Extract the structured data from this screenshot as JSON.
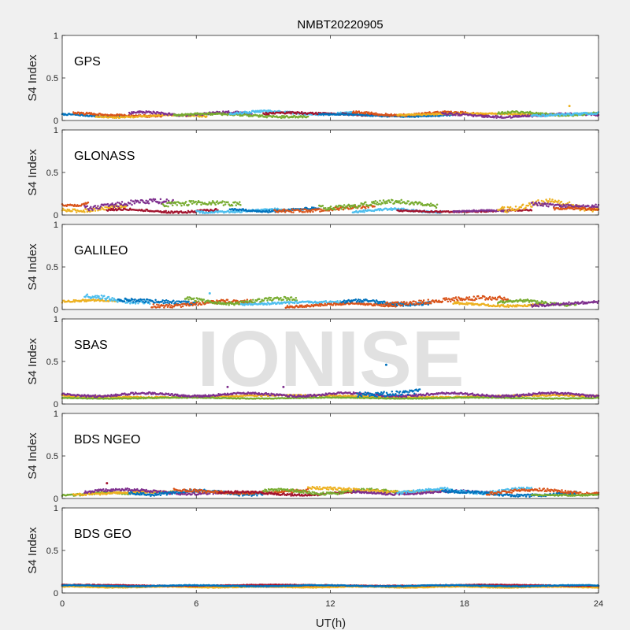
{
  "figure": {
    "title": "NMBT20220905",
    "watermark": "IONISE",
    "background": "#f0f0f0",
    "axes_background": "#ffffff"
  },
  "chart_data": {
    "type": "scatter",
    "title": "NMBT20220905",
    "xlabel": "UT(h)",
    "ylabel": "S4 Index",
    "xlim": [
      0,
      24
    ],
    "ylim": [
      0,
      1
    ],
    "xticks": [
      "0",
      "6",
      "12",
      "18",
      "24"
    ],
    "yticks": [
      "0",
      "0.5",
      "1"
    ],
    "grid": false,
    "series_colors": [
      "#0072BD",
      "#D95319",
      "#EDB120",
      "#7E2F8E",
      "#77AC30",
      "#4DBEEE",
      "#A2142F"
    ],
    "panels": [
      {
        "label": "GPS",
        "tracks": [
          {
            "start": 0.0,
            "end": 2.8,
            "base": 0.06,
            "amp": 0.02,
            "color": 0
          },
          {
            "start": 0.5,
            "end": 4.5,
            "base": 0.07,
            "amp": 0.03,
            "color": 1
          },
          {
            "start": 1.5,
            "end": 6.5,
            "base": 0.05,
            "amp": 0.02,
            "color": 2
          },
          {
            "start": 3.0,
            "end": 8.5,
            "base": 0.08,
            "amp": 0.03,
            "color": 3
          },
          {
            "start": 5.0,
            "end": 11.0,
            "base": 0.06,
            "amp": 0.03,
            "color": 4
          },
          {
            "start": 7.5,
            "end": 13.0,
            "base": 0.09,
            "amp": 0.03,
            "color": 5
          },
          {
            "start": 9.0,
            "end": 15.0,
            "base": 0.07,
            "amp": 0.03,
            "color": 6
          },
          {
            "start": 11.5,
            "end": 17.5,
            "base": 0.06,
            "amp": 0.02,
            "color": 0
          },
          {
            "start": 13.0,
            "end": 19.0,
            "base": 0.08,
            "amp": 0.03,
            "color": 1
          },
          {
            "start": 15.0,
            "end": 21.5,
            "base": 0.07,
            "amp": 0.02,
            "color": 2
          },
          {
            "start": 17.0,
            "end": 24.0,
            "base": 0.06,
            "amp": 0.03,
            "color": 3
          },
          {
            "start": 19.5,
            "end": 24.0,
            "base": 0.08,
            "amp": 0.03,
            "color": 4
          },
          {
            "start": 21.0,
            "end": 24.0,
            "base": 0.07,
            "amp": 0.03,
            "color": 5
          }
        ],
        "points": [
          {
            "x": 22.7,
            "y": 0.17,
            "color": 2
          }
        ]
      },
      {
        "label": "GLONASS",
        "tracks": [
          {
            "start": 0.0,
            "end": 2.9,
            "base": 0.08,
            "amp": 0.05,
            "color": 2
          },
          {
            "start": 0.0,
            "end": 1.2,
            "base": 0.14,
            "amp": 0.04,
            "color": 1
          },
          {
            "start": 1.0,
            "end": 5.0,
            "base": 0.12,
            "amp": 0.07,
            "color": 3
          },
          {
            "start": 2.0,
            "end": 7.0,
            "base": 0.05,
            "amp": 0.03,
            "color": 6
          },
          {
            "start": 4.5,
            "end": 8.0,
            "base": 0.1,
            "amp": 0.07,
            "color": 4
          },
          {
            "start": 6.0,
            "end": 10.0,
            "base": 0.05,
            "amp": 0.03,
            "color": 5
          },
          {
            "start": 7.5,
            "end": 11.5,
            "base": 0.06,
            "amp": 0.03,
            "color": 0
          },
          {
            "start": 9.5,
            "end": 14.0,
            "base": 0.08,
            "amp": 0.05,
            "color": 1
          },
          {
            "start": 11.5,
            "end": 16.8,
            "base": 0.12,
            "amp": 0.06,
            "color": 4
          },
          {
            "start": 13.0,
            "end": 17.0,
            "base": 0.05,
            "amp": 0.03,
            "color": 5
          },
          {
            "start": 15.0,
            "end": 21.0,
            "base": 0.05,
            "amp": 0.02,
            "color": 6
          },
          {
            "start": 17.5,
            "end": 20.0,
            "base": 0.04,
            "amp": 0.02,
            "color": 3
          },
          {
            "start": 19.5,
            "end": 24.0,
            "base": 0.11,
            "amp": 0.08,
            "color": 2
          },
          {
            "start": 21.0,
            "end": 24.0,
            "base": 0.13,
            "amp": 0.05,
            "color": 3
          },
          {
            "start": 22.0,
            "end": 24.0,
            "base": 0.06,
            "amp": 0.03,
            "color": 1
          }
        ],
        "points": []
      },
      {
        "label": "GALILEO",
        "tracks": [
          {
            "start": 0.0,
            "end": 2.5,
            "base": 0.09,
            "amp": 0.03,
            "color": 2
          },
          {
            "start": 1.0,
            "end": 4.0,
            "base": 0.12,
            "amp": 0.06,
            "color": 5
          },
          {
            "start": 2.5,
            "end": 6.0,
            "base": 0.08,
            "amp": 0.05,
            "color": 0
          },
          {
            "start": 4.0,
            "end": 8.5,
            "base": 0.07,
            "amp": 0.05,
            "color": 1
          },
          {
            "start": 5.5,
            "end": 10.5,
            "base": 0.1,
            "amp": 0.05,
            "color": 4
          },
          {
            "start": 8.0,
            "end": 12.5,
            "base": 0.07,
            "amp": 0.03,
            "color": 5
          },
          {
            "start": 10.0,
            "end": 15.0,
            "base": 0.05,
            "amp": 0.03,
            "color": 1
          },
          {
            "start": 12.5,
            "end": 16.5,
            "base": 0.08,
            "amp": 0.04,
            "color": 0
          },
          {
            "start": 14.5,
            "end": 20.0,
            "base": 0.1,
            "amp": 0.06,
            "color": 1
          },
          {
            "start": 17.5,
            "end": 21.5,
            "base": 0.06,
            "amp": 0.03,
            "color": 2
          },
          {
            "start": 19.5,
            "end": 23.0,
            "base": 0.08,
            "amp": 0.04,
            "color": 4
          },
          {
            "start": 21.0,
            "end": 24.0,
            "base": 0.07,
            "amp": 0.04,
            "color": 3
          }
        ],
        "points": [
          {
            "x": 6.6,
            "y": 0.19,
            "color": 5
          }
        ]
      },
      {
        "label": "SBAS",
        "tracks": [
          {
            "start": 0.0,
            "end": 24.0,
            "base": 0.09,
            "amp": 0.02,
            "color": 2
          },
          {
            "start": 0.0,
            "end": 24.0,
            "base": 0.07,
            "amp": 0.01,
            "color": 4
          },
          {
            "start": 0.0,
            "end": 24.0,
            "base": 0.11,
            "amp": 0.03,
            "color": 3
          },
          {
            "start": 13.2,
            "end": 16.0,
            "base": 0.15,
            "amp": 0.07,
            "color": 0
          }
        ],
        "points": [
          {
            "x": 14.5,
            "y": 0.46,
            "color": 0
          },
          {
            "x": 7.4,
            "y": 0.2,
            "color": 3
          },
          {
            "x": 9.9,
            "y": 0.2,
            "color": 3
          }
        ]
      },
      {
        "label": "BDS NGEO",
        "tracks": [
          {
            "start": 0.0,
            "end": 3.0,
            "base": 0.05,
            "amp": 0.03,
            "color": 4
          },
          {
            "start": 0.5,
            "end": 5.0,
            "base": 0.06,
            "amp": 0.03,
            "color": 2
          },
          {
            "start": 1.0,
            "end": 7.0,
            "base": 0.08,
            "amp": 0.04,
            "color": 3
          },
          {
            "start": 3.0,
            "end": 9.0,
            "base": 0.07,
            "amp": 0.04,
            "color": 0
          },
          {
            "start": 5.0,
            "end": 11.0,
            "base": 0.09,
            "amp": 0.04,
            "color": 1
          },
          {
            "start": 7.0,
            "end": 13.0,
            "base": 0.06,
            "amp": 0.03,
            "color": 6
          },
          {
            "start": 9.0,
            "end": 15.0,
            "base": 0.08,
            "amp": 0.04,
            "color": 4
          },
          {
            "start": 11.0,
            "end": 17.0,
            "base": 0.1,
            "amp": 0.04,
            "color": 2
          },
          {
            "start": 13.0,
            "end": 19.0,
            "base": 0.07,
            "amp": 0.03,
            "color": 3
          },
          {
            "start": 15.0,
            "end": 21.0,
            "base": 0.09,
            "amp": 0.04,
            "color": 5
          },
          {
            "start": 17.0,
            "end": 23.0,
            "base": 0.06,
            "amp": 0.04,
            "color": 0
          },
          {
            "start": 19.0,
            "end": 24.0,
            "base": 0.08,
            "amp": 0.04,
            "color": 1
          },
          {
            "start": 21.0,
            "end": 24.0,
            "base": 0.05,
            "amp": 0.02,
            "color": 4
          }
        ],
        "points": [
          {
            "x": 2.0,
            "y": 0.18,
            "color": 6
          }
        ]
      },
      {
        "label": "BDS GEO",
        "tracks": [
          {
            "start": 0.0,
            "end": 24.0,
            "base": 0.08,
            "amp": 0.01,
            "color": 1
          },
          {
            "start": 0.0,
            "end": 24.0,
            "base": 0.07,
            "amp": 0.01,
            "color": 2
          },
          {
            "start": 0.0,
            "end": 24.0,
            "base": 0.09,
            "amp": 0.01,
            "color": 6
          },
          {
            "start": 0.0,
            "end": 24.0,
            "base": 0.085,
            "amp": 0.01,
            "color": 0
          }
        ],
        "points": []
      }
    ]
  }
}
